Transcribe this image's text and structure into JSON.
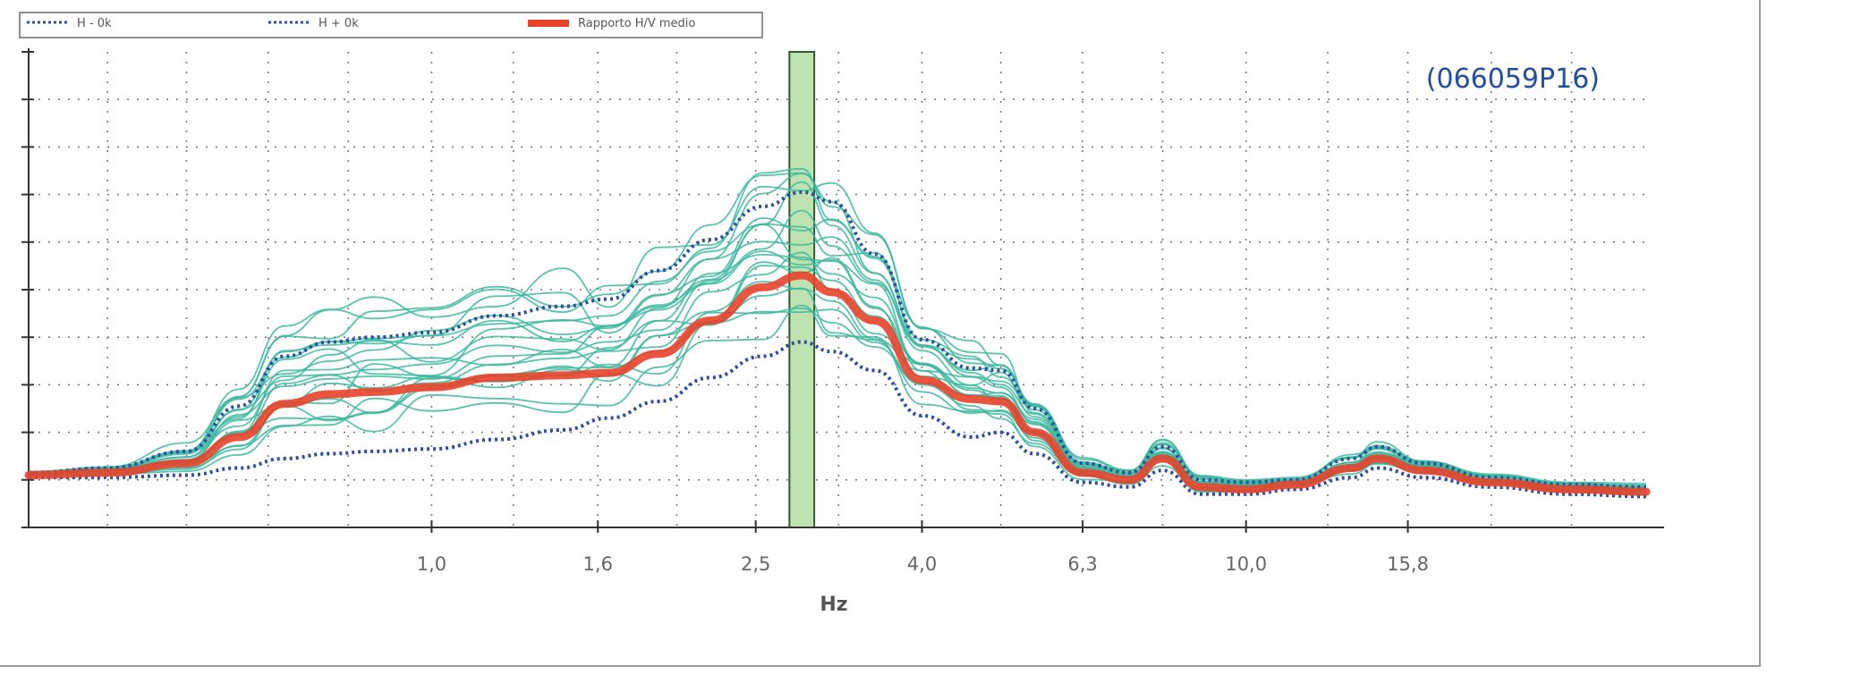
{
  "chart_data": {
    "type": "line",
    "title": "",
    "xlabel": "Hz",
    "ylabel": "",
    "x_scale": "log",
    "xlim": [
      0.32,
      31
    ],
    "ylim": [
      0,
      10
    ],
    "x_ticks": [
      {
        "value": 1.0,
        "label": "1,0"
      },
      {
        "value": 1.6,
        "label": "1,6"
      },
      {
        "value": 2.5,
        "label": "2,5"
      },
      {
        "value": 4.0,
        "label": "4,0"
      },
      {
        "value": 6.3,
        "label": "6,3"
      },
      {
        "value": 10.0,
        "label": "10,0"
      },
      {
        "value": 15.8,
        "label": "15,8"
      }
    ],
    "annotation": "(066059P16)",
    "legend": [
      {
        "label": "H - 0k",
        "color": "#2d4fa0",
        "style": "dotted"
      },
      {
        "label": "H + 0k",
        "color": "#2d4fa0",
        "style": "dotted"
      },
      {
        "label": "Rapporto H/V medio",
        "color": "#e8432a",
        "style": "solid"
      }
    ],
    "grid": true,
    "peak_band": {
      "from": 2.75,
      "to": 2.95,
      "color": "#bfe3b0"
    },
    "series": [
      {
        "name": "Rapporto H/V medio",
        "color": "#e8432a",
        "role": "mean",
        "x": [
          0.32,
          0.4,
          0.5,
          0.58,
          0.66,
          0.75,
          0.85,
          1.0,
          1.2,
          1.45,
          1.65,
          1.9,
          2.2,
          2.55,
          2.85,
          3.1,
          3.5,
          4.0,
          4.6,
          5.0,
          5.5,
          6.3,
          7.2,
          7.9,
          8.8,
          10.0,
          11.5,
          13.5,
          14.5,
          16.5,
          20,
          25,
          31
        ],
        "values": [
          1.1,
          1.15,
          1.35,
          1.9,
          2.6,
          2.8,
          2.85,
          2.95,
          3.15,
          3.2,
          3.25,
          3.65,
          4.35,
          5.05,
          5.3,
          4.95,
          4.35,
          3.1,
          2.7,
          2.65,
          2.0,
          1.15,
          1.0,
          1.45,
          0.85,
          0.8,
          0.9,
          1.25,
          1.45,
          1.2,
          0.95,
          0.8,
          0.75
        ]
      },
      {
        "name": "H - 0k",
        "color": "#2d4fa0",
        "role": "lower",
        "x": [
          0.32,
          0.4,
          0.5,
          0.58,
          0.66,
          0.75,
          0.85,
          1.0,
          1.2,
          1.45,
          1.65,
          1.9,
          2.2,
          2.55,
          2.85,
          3.1,
          3.5,
          4.0,
          4.6,
          5.0,
          5.5,
          6.3,
          7.2,
          7.9,
          8.8,
          10.0,
          11.5,
          13.5,
          14.5,
          16.5,
          20,
          25,
          31
        ],
        "values": [
          1.05,
          1.05,
          1.1,
          1.25,
          1.45,
          1.55,
          1.6,
          1.65,
          1.85,
          2.05,
          2.3,
          2.65,
          3.15,
          3.6,
          3.9,
          3.7,
          3.3,
          2.35,
          1.9,
          2.0,
          1.55,
          0.95,
          0.85,
          1.2,
          0.7,
          0.7,
          0.8,
          1.05,
          1.25,
          1.05,
          0.85,
          0.7,
          0.65
        ]
      },
      {
        "name": "H + 0k",
        "color": "#2d4fa0",
        "role": "upper",
        "x": [
          0.32,
          0.4,
          0.5,
          0.58,
          0.66,
          0.75,
          0.85,
          1.0,
          1.2,
          1.45,
          1.65,
          1.9,
          2.2,
          2.55,
          2.85,
          3.1,
          3.5,
          4.0,
          4.6,
          5.0,
          5.5,
          6.3,
          7.2,
          7.9,
          8.8,
          10.0,
          11.5,
          13.5,
          14.5,
          16.5,
          20,
          25,
          31
        ],
        "values": [
          1.15,
          1.25,
          1.6,
          2.55,
          3.6,
          3.9,
          4.0,
          4.1,
          4.45,
          4.65,
          4.8,
          5.4,
          6.05,
          6.75,
          7.05,
          6.85,
          5.75,
          3.95,
          3.35,
          3.3,
          2.5,
          1.35,
          1.15,
          1.7,
          1.0,
          0.95,
          1.0,
          1.45,
          1.7,
          1.35,
          1.05,
          0.9,
          0.85
        ]
      }
    ]
  }
}
